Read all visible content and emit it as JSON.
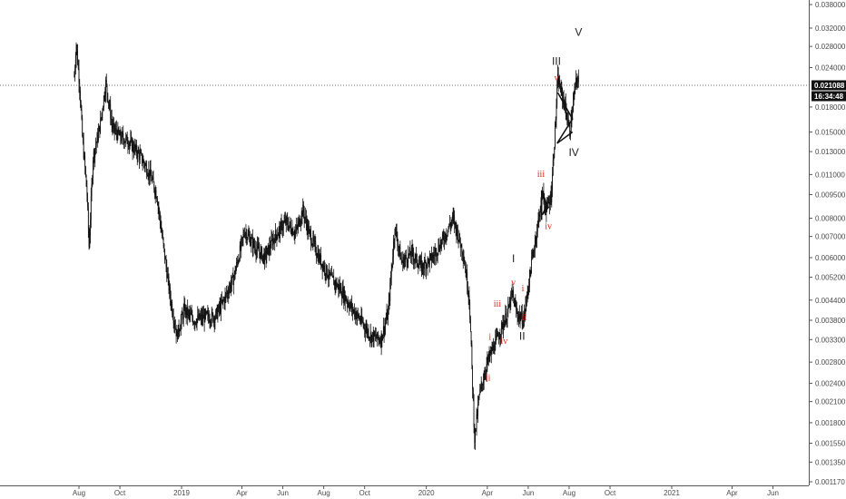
{
  "chart_data": {
    "type": "candlestick",
    "scale": "log",
    "y_ticks": [
      "0.038000",
      "0.032000",
      "0.028000",
      "0.024000",
      "0.018000",
      "0.015000",
      "0.013000",
      "0.011000",
      "0.009500",
      "0.008000",
      "0.007000",
      "0.006000",
      "0.005200",
      "0.004400",
      "0.003800",
      "0.003300",
      "0.002800",
      "0.002400",
      "0.002100",
      "0.001800",
      "0.001550",
      "0.001350",
      "0.001170"
    ],
    "x_ticks": [
      "Aug",
      "Oct",
      "2019",
      "Apr",
      "Jun",
      "Aug",
      "Oct",
      "2020",
      "Apr",
      "Jun",
      "Aug",
      "Oct",
      "2021",
      "Apr",
      "Jun"
    ],
    "current_price": "0.021088",
    "countdown": "16:34:48",
    "price_path": [
      [
        "2018-07-25",
        0.0225
      ],
      [
        "2018-07-28",
        0.0285
      ],
      [
        "2018-08-02",
        0.021
      ],
      [
        "2018-08-06",
        0.0145
      ],
      [
        "2018-08-10",
        0.0115
      ],
      [
        "2018-08-13",
        0.0095
      ],
      [
        "2018-08-16",
        0.0065
      ],
      [
        "2018-08-22",
        0.0125
      ],
      [
        "2018-09-01",
        0.0155
      ],
      [
        "2018-09-10",
        0.0215
      ],
      [
        "2018-09-20",
        0.0155
      ],
      [
        "2018-10-01",
        0.0145
      ],
      [
        "2018-10-15",
        0.014
      ],
      [
        "2018-11-01",
        0.0125
      ],
      [
        "2018-11-15",
        0.011
      ],
      [
        "2018-11-25",
        0.0095
      ],
      [
        "2018-12-05",
        0.0065
      ],
      [
        "2018-12-15",
        0.0045
      ],
      [
        "2018-12-25",
        0.0034
      ],
      [
        "2019-01-05",
        0.0041
      ],
      [
        "2019-01-20",
        0.0038
      ],
      [
        "2019-02-05",
        0.0039
      ],
      [
        "2019-02-20",
        0.0039
      ],
      [
        "2019-03-05",
        0.0044
      ],
      [
        "2019-03-20",
        0.0052
      ],
      [
        "2019-04-05",
        0.0073
      ],
      [
        "2019-04-20",
        0.0065
      ],
      [
        "2019-05-05",
        0.006
      ],
      [
        "2019-05-20",
        0.007
      ],
      [
        "2019-06-05",
        0.0078
      ],
      [
        "2019-06-20",
        0.0072
      ],
      [
        "2019-07-01",
        0.0085
      ],
      [
        "2019-07-10",
        0.0072
      ],
      [
        "2019-07-25",
        0.006
      ],
      [
        "2019-08-10",
        0.0052
      ],
      [
        "2019-08-25",
        0.0048
      ],
      [
        "2019-09-10",
        0.0042
      ],
      [
        "2019-09-25",
        0.0038
      ],
      [
        "2019-10-10",
        0.0034
      ],
      [
        "2019-10-25",
        0.0033
      ],
      [
        "2019-11-05",
        0.004
      ],
      [
        "2019-11-15",
        0.0075
      ],
      [
        "2019-11-25",
        0.0058
      ],
      [
        "2019-12-10",
        0.0062
      ],
      [
        "2019-12-25",
        0.0056
      ],
      [
        "2020-01-10",
        0.006
      ],
      [
        "2020-01-25",
        0.0068
      ],
      [
        "2020-02-10",
        0.008
      ],
      [
        "2020-02-25",
        0.0062
      ],
      [
        "2020-03-05",
        0.0045
      ],
      [
        "2020-03-13",
        0.0016
      ],
      [
        "2020-03-20",
        0.0022
      ],
      [
        "2020-04-01",
        0.0028
      ],
      [
        "2020-04-15",
        0.0033
      ],
      [
        "2020-05-01",
        0.004
      ],
      [
        "2020-05-08",
        0.0046
      ],
      [
        "2020-05-15",
        0.004
      ],
      [
        "2020-05-25",
        0.0038
      ],
      [
        "2020-06-05",
        0.0056
      ],
      [
        "2020-06-15",
        0.0076
      ],
      [
        "2020-06-22",
        0.0096
      ],
      [
        "2020-06-28",
        0.0085
      ],
      [
        "2020-07-05",
        0.0094
      ],
      [
        "2020-07-10",
        0.014
      ],
      [
        "2020-07-15",
        0.022
      ],
      [
        "2020-07-25",
        0.0185
      ],
      [
        "2020-08-02",
        0.015
      ],
      [
        "2020-08-10",
        0.021
      ],
      [
        "2020-08-15",
        0.0225
      ]
    ],
    "wave_labels": {
      "major": [
        {
          "text": "III",
          "date": "2020-07-13",
          "price": 0.0245
        },
        {
          "text": "V",
          "date": "2020-08-15",
          "price": 0.0302
        },
        {
          "text": "IV",
          "date": "2020-08-08",
          "price": 0.0126
        },
        {
          "text": "I",
          "date": "2020-05-10",
          "price": 0.0058
        },
        {
          "text": "II",
          "date": "2020-05-23",
          "price": 0.0033
        }
      ],
      "minor": [
        {
          "text": "v",
          "date": "2020-07-13",
          "price": 0.0218
        },
        {
          "text": "iii",
          "date": "2020-06-20",
          "price": 0.0108
        },
        {
          "text": "iv",
          "date": "2020-07-01",
          "price": 0.0074
        },
        {
          "text": "v",
          "date": "2020-05-10",
          "price": 0.0049
        },
        {
          "text": "iii",
          "date": "2020-04-16",
          "price": 0.0042
        },
        {
          "text": "iv",
          "date": "2020-04-26",
          "price": 0.0032
        },
        {
          "text": "i",
          "date": "2020-04-05",
          "price": 0.0033
        },
        {
          "text": "ii",
          "date": "2020-04-02",
          "price": 0.00245
        },
        {
          "text": "i",
          "date": "2020-05-24",
          "price": 0.0047
        },
        {
          "text": "ii",
          "date": "2020-05-26",
          "price": 0.0038
        }
      ]
    },
    "colors": {
      "candles": "#111111",
      "minor_labels": "#e0251b",
      "major_labels": "#222222",
      "tag_bg": "#111111",
      "grid_line": "#444444"
    }
  }
}
